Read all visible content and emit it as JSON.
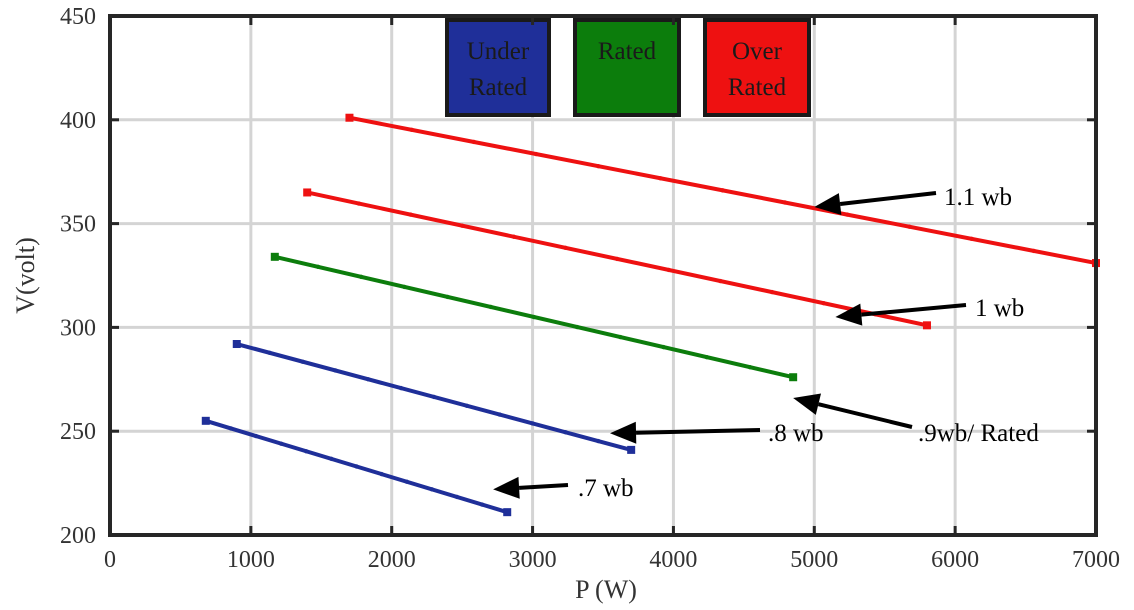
{
  "chart_data": {
    "type": "line",
    "title": "",
    "xlabel": "P (W)",
    "ylabel": "V(volt)",
    "xlim": [
      0,
      7000
    ],
    "ylim": [
      200,
      450
    ],
    "xticks": [
      "0",
      "1000",
      "2000",
      "3000",
      "4000",
      "5000",
      "6000",
      "7000"
    ],
    "yticks": [
      "200",
      "250",
      "300",
      "350",
      "400",
      "450"
    ],
    "grid": true,
    "series": [
      {
        "name": ".7 wb",
        "color": "#1f2f99",
        "x": [
          680,
          2820
        ],
        "y": [
          255,
          211
        ]
      },
      {
        "name": ".8 wb",
        "color": "#1f2f99",
        "x": [
          900,
          3700
        ],
        "y": [
          292,
          241
        ]
      },
      {
        "name": ".9wb/ Rated",
        "color": "#0c7d0c",
        "x": [
          1170,
          4850
        ],
        "y": [
          334,
          276
        ]
      },
      {
        "name": "1 wb",
        "color": "#ee1111",
        "x": [
          1400,
          5800
        ],
        "y": [
          365,
          301
        ]
      },
      {
        "name": "1.1 wb",
        "color": "#ee1111",
        "x": [
          1700,
          7000
        ],
        "y": [
          401,
          331
        ]
      }
    ],
    "annotations": [
      {
        "text": "1.1 wb",
        "text_at": [
          5900,
          362
        ],
        "arrow_to": [
          5000,
          358
        ]
      },
      {
        "text": "1 wb",
        "text_at": [
          6100,
          307
        ],
        "arrow_to": [
          5150,
          305
        ]
      },
      {
        "text": ".9wb/ Rated",
        "text_at": [
          5750,
          246
        ],
        "arrow_to": [
          4850,
          266
        ]
      },
      {
        "text": ".8 wb",
        "text_at": [
          4600,
          248
        ],
        "arrow_to": [
          3550,
          249
        ]
      },
      {
        "text": ".7 wb",
        "text_at": [
          3300,
          221
        ],
        "arrow_to": [
          2720,
          222
        ]
      }
    ],
    "legend": {
      "placement": "top-center",
      "entries": [
        {
          "label": "Under Rated",
          "lines": [
            "Under",
            "Rated"
          ],
          "color": "#1f2f99"
        },
        {
          "label": "Rated",
          "lines": [
            "Rated"
          ],
          "color": "#0c7d0c"
        },
        {
          "label": "Over Rated",
          "lines": [
            "Over",
            "Rated"
          ],
          "color": "#ee1111"
        }
      ]
    }
  }
}
